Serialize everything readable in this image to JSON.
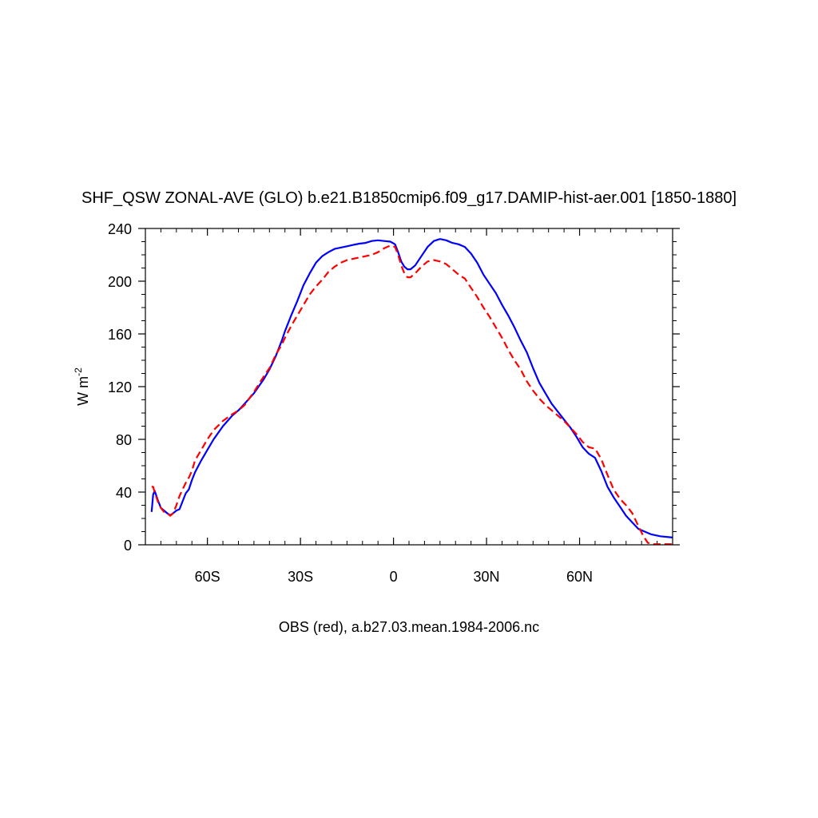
{
  "chart_data": {
    "type": "line",
    "title": "SHF_QSW ZONAL-AVE (GLO) b.e21.B1850cmip6.f09_g17.DAMIP-hist-aer.001 [1850-1880]",
    "xlabel": "OBS (red), a.b27.03.mean.1984-2006.nc",
    "ylabel": "W m",
    "ylabel_superscript": "-2",
    "xlim": [
      -80,
      90
    ],
    "ylim": [
      0,
      240
    ],
    "grid": false,
    "xticks": [
      {
        "value": -60,
        "label": "60S"
      },
      {
        "value": -30,
        "label": "30S"
      },
      {
        "value": 0,
        "label": "0"
      },
      {
        "value": 30,
        "label": "30N"
      },
      {
        "value": 60,
        "label": "60N"
      }
    ],
    "yticks": [
      0,
      40,
      80,
      120,
      160,
      200,
      240
    ],
    "series": [
      {
        "color": "#0000ff",
        "dash": "solid",
        "points": [
          [
            -78,
            25
          ],
          [
            -77.5,
            38
          ],
          [
            -77,
            41
          ],
          [
            -76,
            34
          ],
          [
            -75,
            28
          ],
          [
            -74,
            26
          ],
          [
            -73,
            24
          ],
          [
            -72,
            22.5
          ],
          [
            -71,
            24
          ],
          [
            -70,
            26
          ],
          [
            -69,
            27
          ],
          [
            -68,
            33
          ],
          [
            -67,
            39
          ],
          [
            -66,
            42
          ],
          [
            -65,
            49
          ],
          [
            -64,
            55
          ],
          [
            -62,
            64
          ],
          [
            -60,
            72
          ],
          [
            -58,
            80
          ],
          [
            -55,
            90
          ],
          [
            -52,
            98
          ],
          [
            -50,
            102
          ],
          [
            -48,
            107
          ],
          [
            -45,
            115
          ],
          [
            -42,
            125
          ],
          [
            -40,
            133
          ],
          [
            -38,
            143
          ],
          [
            -36,
            155
          ],
          [
            -35,
            162
          ],
          [
            -33,
            174
          ],
          [
            -31,
            185
          ],
          [
            -29,
            197
          ],
          [
            -27,
            206
          ],
          [
            -25,
            214
          ],
          [
            -23,
            219
          ],
          [
            -21,
            222
          ],
          [
            -19,
            224.5
          ],
          [
            -17,
            225.5
          ],
          [
            -15,
            226.5
          ],
          [
            -13,
            227.5
          ],
          [
            -11,
            228.5
          ],
          [
            -9,
            229
          ],
          [
            -7,
            230.5
          ],
          [
            -5,
            231
          ],
          [
            -3,
            230.5
          ],
          [
            -1,
            230
          ],
          [
            0.5,
            228
          ],
          [
            1.5,
            222
          ],
          [
            2.5,
            215
          ],
          [
            3.5,
            211
          ],
          [
            4.5,
            209
          ],
          [
            5.5,
            209
          ],
          [
            7,
            212
          ],
          [
            9,
            219
          ],
          [
            11,
            226
          ],
          [
            13,
            230.5
          ],
          [
            15,
            232
          ],
          [
            17,
            231
          ],
          [
            19,
            229
          ],
          [
            21,
            228
          ],
          [
            23,
            226
          ],
          [
            25,
            221
          ],
          [
            27,
            214
          ],
          [
            29,
            205
          ],
          [
            31,
            198
          ],
          [
            33,
            191
          ],
          [
            35,
            182
          ],
          [
            37,
            174
          ],
          [
            39,
            165
          ],
          [
            41,
            155
          ],
          [
            43,
            146
          ],
          [
            45,
            134
          ],
          [
            47,
            123
          ],
          [
            49,
            115
          ],
          [
            51,
            107
          ],
          [
            53,
            101
          ],
          [
            55,
            95
          ],
          [
            57,
            89
          ],
          [
            59,
            82
          ],
          [
            61,
            74
          ],
          [
            63,
            69
          ],
          [
            65,
            66
          ],
          [
            67,
            56
          ],
          [
            69,
            44
          ],
          [
            71,
            36
          ],
          [
            73,
            29
          ],
          [
            75,
            22
          ],
          [
            77,
            17
          ],
          [
            79,
            12
          ],
          [
            81,
            10
          ],
          [
            83,
            8
          ],
          [
            86,
            6.5
          ],
          [
            90,
            5.5
          ]
        ]
      },
      {
        "color": "#ff0000",
        "dash": "dashed",
        "points": [
          [
            -78,
            44
          ],
          [
            -77.5,
            44
          ],
          [
            -77,
            40
          ],
          [
            -76,
            33
          ],
          [
            -75,
            28
          ],
          [
            -74,
            25
          ],
          [
            -73,
            24
          ],
          [
            -72,
            22
          ],
          [
            -71,
            24
          ],
          [
            -70,
            30
          ],
          [
            -69,
            37
          ],
          [
            -68,
            42
          ],
          [
            -67,
            47
          ],
          [
            -66,
            51
          ],
          [
            -65,
            56
          ],
          [
            -64,
            64
          ],
          [
            -62,
            72
          ],
          [
            -60,
            80
          ],
          [
            -58,
            87
          ],
          [
            -55,
            94
          ],
          [
            -52,
            99
          ],
          [
            -50,
            102
          ],
          [
            -48,
            106
          ],
          [
            -45,
            116
          ],
          [
            -42,
            127
          ],
          [
            -40,
            134
          ],
          [
            -38,
            144
          ],
          [
            -36,
            152
          ],
          [
            -35,
            157
          ],
          [
            -33,
            166
          ],
          [
            -31,
            174
          ],
          [
            -29,
            182
          ],
          [
            -27,
            190
          ],
          [
            -25,
            196
          ],
          [
            -23,
            201
          ],
          [
            -21,
            207
          ],
          [
            -19,
            211
          ],
          [
            -17,
            214
          ],
          [
            -15,
            216
          ],
          [
            -13,
            217
          ],
          [
            -11,
            218
          ],
          [
            -9,
            219
          ],
          [
            -7,
            220
          ],
          [
            -5,
            222
          ],
          [
            -3,
            225
          ],
          [
            -1,
            227
          ],
          [
            0.5,
            226
          ],
          [
            1.5,
            220
          ],
          [
            2.5,
            212
          ],
          [
            3.5,
            206
          ],
          [
            4.5,
            203
          ],
          [
            5.5,
            203
          ],
          [
            7,
            206
          ],
          [
            9,
            211
          ],
          [
            11,
            215
          ],
          [
            13,
            216
          ],
          [
            15,
            215
          ],
          [
            17,
            213
          ],
          [
            19,
            209
          ],
          [
            21,
            205
          ],
          [
            23,
            202
          ],
          [
            25,
            195
          ],
          [
            27,
            188
          ],
          [
            29,
            180
          ],
          [
            31,
            173
          ],
          [
            33,
            165
          ],
          [
            35,
            157
          ],
          [
            37,
            148
          ],
          [
            39,
            140
          ],
          [
            41,
            133
          ],
          [
            43,
            124
          ],
          [
            45,
            117
          ],
          [
            47,
            111
          ],
          [
            49,
            106
          ],
          [
            51,
            102
          ],
          [
            53,
            98
          ],
          [
            55,
            94
          ],
          [
            57,
            89
          ],
          [
            59,
            84
          ],
          [
            61,
            78
          ],
          [
            63,
            74
          ],
          [
            65,
            73
          ],
          [
            67,
            65
          ],
          [
            69,
            53
          ],
          [
            71,
            42
          ],
          [
            73,
            35
          ],
          [
            75,
            30
          ],
          [
            77,
            24
          ],
          [
            79,
            14
          ],
          [
            80.5,
            7
          ],
          [
            82,
            1.5
          ],
          [
            83.5,
            0.5
          ],
          [
            90,
            0.5
          ]
        ]
      }
    ]
  }
}
